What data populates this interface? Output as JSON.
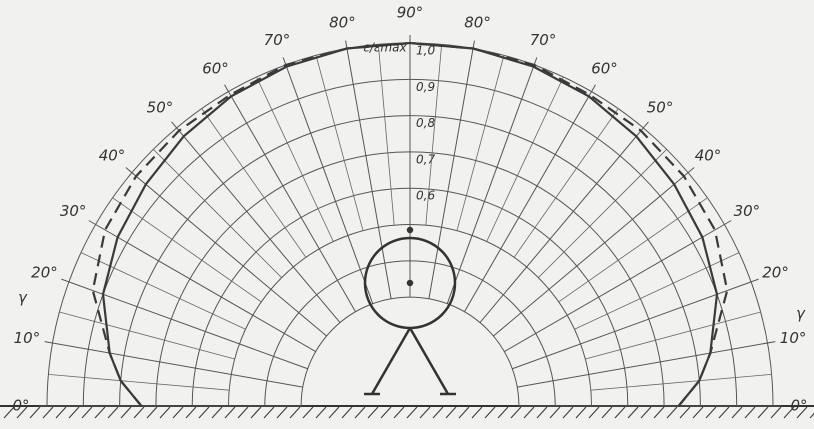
{
  "chart_data": {
    "type": "polar",
    "radial_label": "ε/εmax",
    "gamma_label": "γ",
    "rlim": [
      0,
      1.0
    ],
    "rticks": [
      {
        "value": 0.6,
        "label": "0,6"
      },
      {
        "value": 0.7,
        "label": "0,7"
      },
      {
        "value": 0.8,
        "label": "0,8"
      },
      {
        "value": 0.9,
        "label": "0,9"
      },
      {
        "value": 1.0,
        "label": "1,0"
      }
    ],
    "rgrid_minor": [
      0.3,
      0.4,
      0.5
    ],
    "angle_ticks": [
      {
        "value": 0,
        "label": "0°"
      },
      {
        "value": 10,
        "label": "10°"
      },
      {
        "value": 20,
        "label": "20°"
      },
      {
        "value": 30,
        "label": "30°"
      },
      {
        "value": 40,
        "label": "40°"
      },
      {
        "value": 50,
        "label": "50°"
      },
      {
        "value": 60,
        "label": "60°"
      },
      {
        "value": 70,
        "label": "70°"
      },
      {
        "value": 80,
        "label": "80°"
      },
      {
        "value": 90,
        "label": "90°"
      }
    ],
    "x": [
      0,
      5,
      10,
      20,
      30,
      40,
      50,
      60,
      70,
      80,
      90
    ],
    "series": [
      {
        "style": "solid",
        "color": "#3a3a3a",
        "values": [
          0.74,
          0.8,
          0.84,
          0.9,
          0.93,
          0.95,
          0.97,
          0.985,
          0.995,
          1.0,
          1.0
        ]
      },
      {
        "style": "dashed",
        "color": "#3a3a3a",
        "values": [
          0.74,
          0.8,
          0.84,
          0.93,
          0.97,
          0.985,
          0.99,
          0.99,
          1.0,
          1.0,
          1.0
        ]
      }
    ]
  }
}
